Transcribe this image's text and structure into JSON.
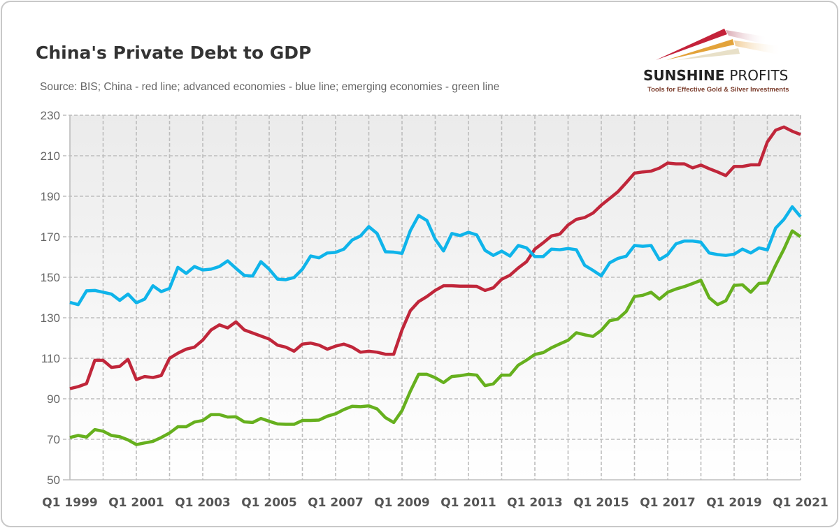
{
  "title": "China's Private Debt to GDP",
  "subtitle": "Source: BIS; China - red line; advanced economies - blue line; emerging economies - green line",
  "logo": {
    "name": "SUNSHINE PROFITS",
    "tagline": "Tools for Effective Gold & Silver Investments"
  },
  "chart_data": {
    "type": "line",
    "x_start": "Q1 1999",
    "x_end": "Q1 2021",
    "frequency": "quarterly",
    "xtick_labels": [
      "Q1 1999",
      "Q1 2001",
      "Q1 2003",
      "Q1 2005",
      "Q1 2007",
      "Q1 2009",
      "Q1 2011",
      "Q1 2013",
      "Q1 2015",
      "Q1 2017",
      "Q1 2019",
      "Q1 2021"
    ],
    "ylim": [
      50,
      230
    ],
    "yticks": [
      50,
      70,
      90,
      110,
      130,
      150,
      170,
      190,
      210,
      230
    ],
    "grid": true,
    "series": [
      {
        "color": "#c0263a",
        "values": [
          95,
          96,
          97.5,
          109,
          109,
          105.5,
          106,
          109.5,
          99.5,
          101,
          100.5,
          101.5,
          110,
          112.5,
          114.5,
          115.5,
          119,
          124,
          126.5,
          125,
          128,
          124,
          122.5,
          121,
          119.5,
          116.5,
          115.5,
          113.5,
          117,
          117.5,
          116.5,
          114.5,
          116,
          117,
          115.5,
          113,
          113.5,
          113,
          112,
          112,
          124,
          133.5,
          138,
          140.5,
          143.5,
          145.8,
          145.8,
          145.6,
          145.6,
          145.5,
          143.5,
          144.8,
          149,
          151,
          154.6,
          157.7,
          163.9,
          167,
          170.4,
          171.3,
          175.8,
          178.6,
          179.5,
          181.7,
          185.6,
          188.9,
          192.2,
          196.7,
          201.4,
          202,
          202.4,
          203.9,
          206.4,
          206,
          206,
          204,
          205.4,
          203.6,
          202,
          200.2,
          204.7,
          204.7,
          205.5,
          205.5,
          216.8,
          222.6,
          224.2,
          222.1,
          220.5
        ]
      },
      {
        "color": "#0fb4ea",
        "values": [
          137.6,
          136.5,
          143.3,
          143.5,
          142.6,
          141.7,
          138.6,
          141.7,
          137.4,
          139.2,
          145.8,
          142.9,
          144.5,
          154.9,
          151.9,
          155.3,
          153.6,
          154,
          155.3,
          158.1,
          154.4,
          150.9,
          150.6,
          157.7,
          154,
          149.1,
          148.8,
          149.9,
          154,
          160.5,
          159.6,
          162,
          162.3,
          163.9,
          168.4,
          170.4,
          175,
          171.6,
          162.6,
          162.4,
          161.8,
          173,
          180.5,
          178,
          168.8,
          163,
          171.6,
          170.6,
          172.2,
          170.9,
          163.3,
          160.8,
          162.9,
          160.5,
          165.7,
          164.5,
          160.2,
          160.2,
          163.9,
          163.6,
          164.2,
          163.6,
          155.9,
          153.4,
          150.7,
          157.1,
          159.3,
          160.4,
          165.7,
          165.3,
          165.7,
          158.7,
          161.2,
          166.5,
          167.9,
          167.9,
          167.3,
          162,
          161.2,
          160.8,
          161.4,
          163.9,
          162,
          164.5,
          163.5,
          174.3,
          178.6,
          184.8,
          179.9
        ]
      },
      {
        "color": "#66b01e",
        "values": [
          70.9,
          71.9,
          71.1,
          74.8,
          74,
          71.9,
          71.3,
          69.7,
          67.4,
          68.2,
          69,
          70.9,
          73.1,
          76.2,
          76.2,
          78.5,
          79.3,
          82.2,
          82.2,
          81,
          81.1,
          78.6,
          78.3,
          80.3,
          78.9,
          77.6,
          77.4,
          77.4,
          79.3,
          79.3,
          79.5,
          81.4,
          82.6,
          84.7,
          86.3,
          86.1,
          86.5,
          85,
          80.7,
          78.3,
          84.2,
          93.7,
          102.1,
          102.1,
          100.4,
          98,
          101,
          101.4,
          102.1,
          101.7,
          96.5,
          97.4,
          101.7,
          101.7,
          106.6,
          109.1,
          111.9,
          112.8,
          115.2,
          117.1,
          118.9,
          122.6,
          121.6,
          120.8,
          123.8,
          128.5,
          129.4,
          133.1,
          140.5,
          141.1,
          142.6,
          139.2,
          142.6,
          144.2,
          145.4,
          146.9,
          148.5,
          139.9,
          136.5,
          138.4,
          146,
          146.3,
          142.6,
          147,
          147.2,
          155.9,
          163.9,
          172.9,
          170
        ]
      }
    ]
  }
}
